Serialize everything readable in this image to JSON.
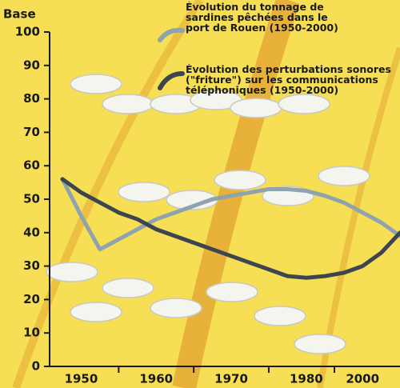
{
  "chart_data": {
    "type": "line",
    "y_label": "Base",
    "categories": [
      null,
      "1950",
      null,
      null,
      null,
      "1960",
      null,
      null,
      null,
      "1970",
      null,
      null,
      null,
      "1980",
      null,
      null,
      "2000",
      null,
      null
    ],
    "series": [
      {
        "name": "Évolution du tonnage de sardines pêchées dans le port de Rouen (1950-2000)",
        "color": "#8fa3ae",
        "values": [
          56,
          45,
          35,
          38,
          41,
          44,
          46,
          48,
          50,
          51,
          52,
          53,
          53,
          52.5,
          51,
          49,
          46,
          43,
          39
        ]
      },
      {
        "name": "Évolution des perturbations sonores (\"friture\") sur les communications téléphoniques (1950-2000)",
        "color": "#3d4650",
        "values": [
          56,
          52,
          49,
          46,
          44,
          41,
          39,
          37,
          35,
          33,
          31,
          29,
          27,
          26.5,
          27,
          28,
          30,
          34,
          40
        ]
      }
    ],
    "ylim": [
      0,
      100
    ],
    "yticks": [
      0,
      10,
      20,
      30,
      40,
      50,
      60,
      70,
      80,
      90,
      100
    ]
  }
}
